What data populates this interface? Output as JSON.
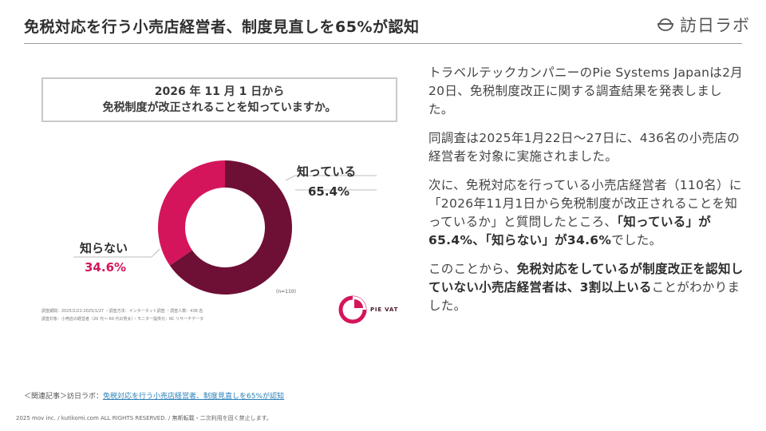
{
  "header": {
    "title": "免税対応を行う小売店経営者、制度見直しを65%が認知",
    "brand": "訪日ラボ",
    "brand_icon": "bowl-logo-icon"
  },
  "figure": {
    "question_line1": "2026 年 11 月 1 日から",
    "question_line2": "免税制度が改正されることを知っていますか。",
    "know_label": "知っている",
    "know_pct": "65.4%",
    "unknown_label": "知らない",
    "unknown_pct": "34.6%",
    "n_note": "(n=110)",
    "survey_line1": "調査期間：2025/1/22-2025/1/27 ・調査方法：インターネット調査 ・調査人数：436 名",
    "survey_line2": "調査対象：小売店の経営者（20 代〜 60 代の男女）・モニター提供元：RC リサーチデータ",
    "logo_text": "PIE VAT",
    "colors": {
      "know": "#6e0f36",
      "unknown": "#d4155c"
    }
  },
  "chart_data": {
    "type": "pie",
    "title": "2026 年 11 月 1 日から 免税制度が改正されることを知っていますか。",
    "categories": [
      "知っている",
      "知らない"
    ],
    "values": [
      65.4,
      34.6
    ],
    "unit": "%",
    "n": "(n=110)",
    "donut": true
  },
  "article": {
    "p1": "トラベルテックカンパニーのPie Systems Japanは2月20日、免税制度改正に関する調査結果を発表しました。",
    "p2": "同調査は2025年1月22日〜27日に、436名の小売店の経営者を対象に実施されました。",
    "p3_a": "次に、免税対応を行っている小売店経営者（110名）に「2026年11月1日から免税制度が改正されることを知っているか」と質問したところ、",
    "p3_b": "「知っている」が65.4%、「知らない」が34.6%",
    "p3_c": "でした。",
    "p4_a": "このことから、",
    "p4_b": "免税対応をしているが制度改正を認知していない小売店経営者は、3割以上いる",
    "p4_c": "ことがわかりました。"
  },
  "footer": {
    "related_prefix": "＜関連記事＞訪日ラボ：",
    "related_link": "免税対応を行う小売店経営者、制度見直しを65%が認知",
    "copyright": "2025 mov inc. / kutikomi.com ALL RIGHTS RESERVED. / 無断転載・二次利用を固く禁止します。"
  }
}
